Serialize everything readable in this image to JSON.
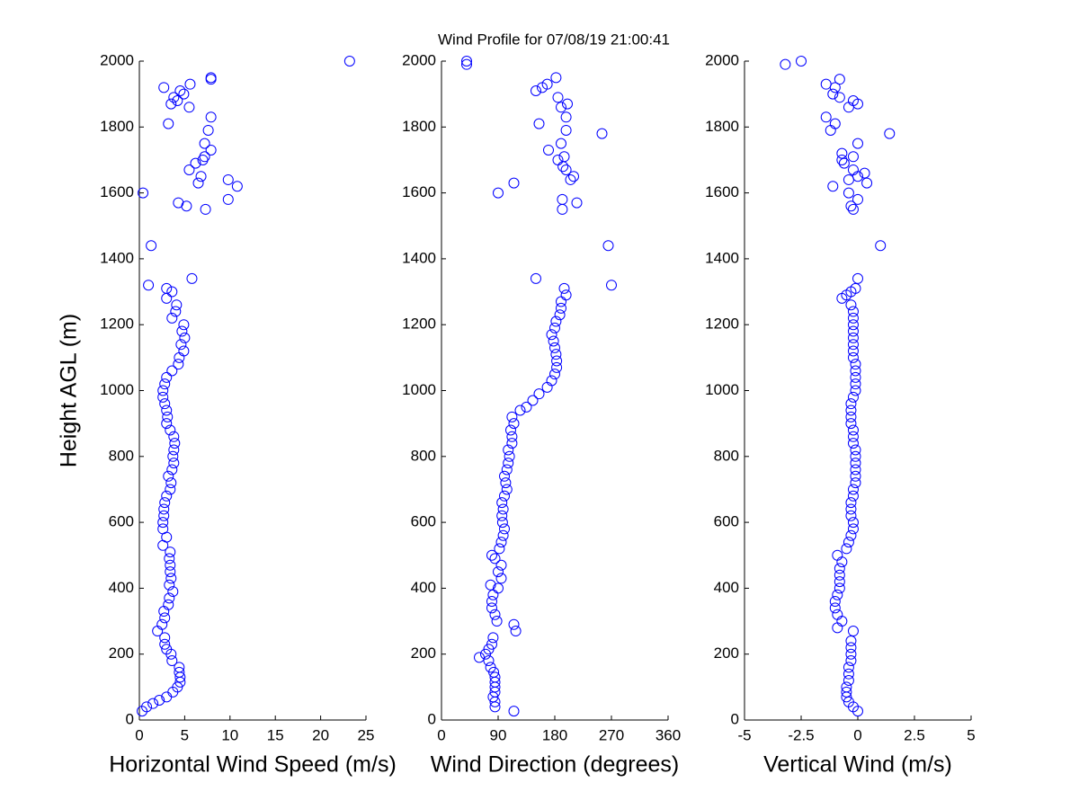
{
  "chart_data": [
    {
      "type": "scatter",
      "ylabel": "Height AGL (m)",
      "xlabel": "Horizontal Wind Speed (m/s)",
      "xlim": [
        0,
        25
      ],
      "xticks": [
        0,
        5,
        10,
        15,
        20,
        25
      ],
      "ylim": [
        0,
        2000
      ],
      "yticks": [
        0,
        200,
        400,
        600,
        800,
        1000,
        1200,
        1400,
        1600,
        1800,
        2000
      ],
      "color": "#0000ff",
      "x": [
        0.3,
        0.8,
        1.5,
        2.2,
        3,
        3.7,
        4.2,
        4.5,
        4.5,
        4.4,
        4.4,
        3.6,
        3.5,
        3.0,
        2.8,
        2.8,
        2.0,
        2.5,
        2.8,
        2.7,
        3.2,
        3.3,
        3.7,
        3.3,
        3.5,
        3.4,
        3.4,
        3.3,
        3.4,
        2.6,
        3.0,
        2.6,
        2.6,
        2.7,
        2.7,
        2.8,
        3.0,
        3.4,
        3.5,
        3.2,
        3.6,
        3.8,
        3.7,
        3.8,
        3.9,
        3.8,
        3.4,
        3.0,
        3.1,
        3.0,
        2.8,
        2.6,
        2.6,
        2.8,
        3.0,
        3.6,
        4.3,
        4.4,
        4.9,
        4.6,
        5.0,
        4.7,
        4.9,
        3.6,
        4.0,
        4.1,
        3.0,
        3.6,
        3.0,
        1.0,
        5.8,
        1.3,
        7.3,
        5.2,
        4.3,
        9.8,
        0.4,
        10.8,
        9.8,
        6.5,
        6.8,
        5.5,
        6.2,
        7.0,
        7.2,
        7.9,
        7.2,
        7.6,
        3.2,
        7.9,
        5.5,
        3.5,
        4.2,
        3.8,
        4.9,
        4.5,
        2.7,
        5.6,
        7.9,
        7.9,
        23.2
      ],
      "values": [
        27,
        40,
        50,
        60,
        70,
        85,
        100,
        115,
        130,
        145,
        160,
        180,
        200,
        215,
        230,
        250,
        270,
        290,
        310,
        330,
        350,
        370,
        390,
        410,
        430,
        450,
        470,
        490,
        510,
        530,
        555,
        580,
        600,
        620,
        640,
        660,
        680,
        700,
        720,
        740,
        760,
        780,
        800,
        820,
        840,
        860,
        880,
        900,
        920,
        940,
        960,
        980,
        1000,
        1020,
        1040,
        1060,
        1080,
        1100,
        1120,
        1140,
        1160,
        1180,
        1200,
        1220,
        1240,
        1260,
        1280,
        1300,
        1310,
        1320,
        1340,
        1440,
        1550,
        1560,
        1570,
        1580,
        1600,
        1620,
        1640,
        1630,
        1650,
        1670,
        1690,
        1700,
        1710,
        1730,
        1750,
        1790,
        1810,
        1830,
        1860,
        1870,
        1880,
        1890,
        1900,
        1910,
        1920,
        1930,
        1945,
        1950,
        2000
      ]
    },
    {
      "type": "scatter",
      "title": "Wind Profile for  07/08/19 21:00:41",
      "xlabel": "Wind Direction (degrees)",
      "xlim": [
        0,
        360
      ],
      "xticks": [
        0,
        90,
        180,
        270,
        360
      ],
      "ylim": [
        0,
        2000
      ],
      "yticks": [
        0,
        200,
        400,
        600,
        800,
        1000,
        1200,
        1400,
        1600,
        1800,
        2000
      ],
      "color": "#0000ff",
      "x": [
        115,
        85,
        85,
        82,
        85,
        85,
        85,
        85,
        83,
        78,
        75,
        60,
        70,
        75,
        80,
        82,
        118,
        115,
        88,
        85,
        80,
        80,
        82,
        90,
        78,
        95,
        90,
        95,
        85,
        80,
        92,
        95,
        98,
        100,
        97,
        96,
        98,
        96,
        100,
        104,
        102,
        100,
        104,
        106,
        108,
        106,
        112,
        112,
        110,
        115,
        112,
        125,
        135,
        145,
        155,
        168,
        175,
        180,
        183,
        183,
        182,
        180,
        178,
        175,
        180,
        182,
        188,
        190,
        190,
        198,
        195,
        270,
        150,
        265,
        192,
        215,
        192,
        90,
        115,
        205,
        210,
        198,
        193,
        185,
        195,
        170,
        190,
        255,
        198,
        155,
        198,
        190,
        200,
        185,
        150,
        160,
        168,
        182,
        40,
        40
      ],
      "values": [
        27,
        40,
        55,
        70,
        85,
        100,
        115,
        130,
        145,
        160,
        180,
        190,
        200,
        215,
        230,
        250,
        270,
        290,
        300,
        320,
        340,
        360,
        380,
        400,
        410,
        430,
        450,
        470,
        490,
        500,
        520,
        540,
        560,
        580,
        600,
        620,
        640,
        660,
        680,
        700,
        720,
        740,
        760,
        780,
        800,
        820,
        840,
        860,
        880,
        900,
        920,
        940,
        950,
        970,
        990,
        1010,
        1030,
        1050,
        1070,
        1090,
        1110,
        1130,
        1150,
        1170,
        1190,
        1210,
        1230,
        1250,
        1270,
        1290,
        1310,
        1320,
        1340,
        1440,
        1550,
        1570,
        1580,
        1600,
        1630,
        1640,
        1650,
        1670,
        1680,
        1700,
        1710,
        1730,
        1750,
        1780,
        1790,
        1810,
        1830,
        1860,
        1870,
        1890,
        1910,
        1920,
        1930,
        1950,
        1990,
        2000
      ]
    },
    {
      "type": "scatter",
      "xlabel": "Vertical Wind (m/s)",
      "xlim": [
        -5,
        5
      ],
      "xticks": [
        -5,
        -2.5,
        0,
        2.5,
        5
      ],
      "ylim": [
        0,
        2000
      ],
      "yticks": [
        0,
        200,
        400,
        600,
        800,
        1000,
        1200,
        1400,
        1600,
        1800,
        2000
      ],
      "color": "#0000ff",
      "x": [
        0,
        -0.2,
        -0.4,
        -0.5,
        -0.5,
        -0.5,
        -0.4,
        -0.4,
        -0.4,
        -0.3,
        -0.3,
        -0.3,
        -0.3,
        -0.2,
        -0.9,
        -0.7,
        -0.9,
        -1.0,
        -1.0,
        -0.9,
        -0.8,
        -0.8,
        -0.8,
        -0.8,
        -0.7,
        -0.9,
        -0.5,
        -0.4,
        -0.3,
        -0.2,
        -0.2,
        -0.3,
        -0.3,
        -0.3,
        -0.2,
        -0.2,
        -0.1,
        -0.1,
        -0.1,
        -0.1,
        -0.1,
        -0.1,
        -0.2,
        -0.2,
        -0.2,
        -0.3,
        -0.3,
        -0.3,
        -0.3,
        -0.2,
        -0.1,
        -0.1,
        -0.1,
        -0.1,
        -0.1,
        -0.2,
        -0.2,
        -0.2,
        -0.2,
        -0.2,
        -0.2,
        -0.2,
        -0.2,
        -0.3,
        -0.7,
        -0.5,
        -0.3,
        -0.1,
        0,
        1.0,
        -0.2,
        -0.3,
        0,
        -0.4,
        -1.1,
        0.4,
        -0.4,
        0,
        0.3,
        -0.2,
        -0.6,
        -0.7,
        -0.2,
        -0.7,
        0,
        1.4,
        -1.2,
        -1.0,
        -1.4,
        -0.4,
        0,
        -0.2,
        -0.8,
        -1.1,
        -1.0,
        -1.4,
        -0.8,
        -2.5,
        -3.2
      ],
      "values": [
        27,
        40,
        55,
        70,
        85,
        100,
        120,
        140,
        160,
        180,
        200,
        220,
        240,
        270,
        280,
        300,
        320,
        340,
        360,
        380,
        400,
        420,
        440,
        460,
        480,
        500,
        520,
        540,
        560,
        580,
        600,
        620,
        640,
        660,
        680,
        700,
        720,
        740,
        760,
        780,
        800,
        820,
        840,
        860,
        880,
        900,
        920,
        940,
        960,
        980,
        1000,
        1020,
        1040,
        1060,
        1080,
        1100,
        1120,
        1140,
        1160,
        1180,
        1200,
        1220,
        1240,
        1260,
        1280,
        1290,
        1300,
        1310,
        1340,
        1440,
        1550,
        1560,
        1580,
        1600,
        1620,
        1630,
        1640,
        1650,
        1660,
        1670,
        1690,
        1700,
        1710,
        1720,
        1750,
        1780,
        1790,
        1810,
        1830,
        1860,
        1870,
        1880,
        1890,
        1900,
        1920,
        1930,
        1945,
        2000,
        1990
      ]
    }
  ]
}
